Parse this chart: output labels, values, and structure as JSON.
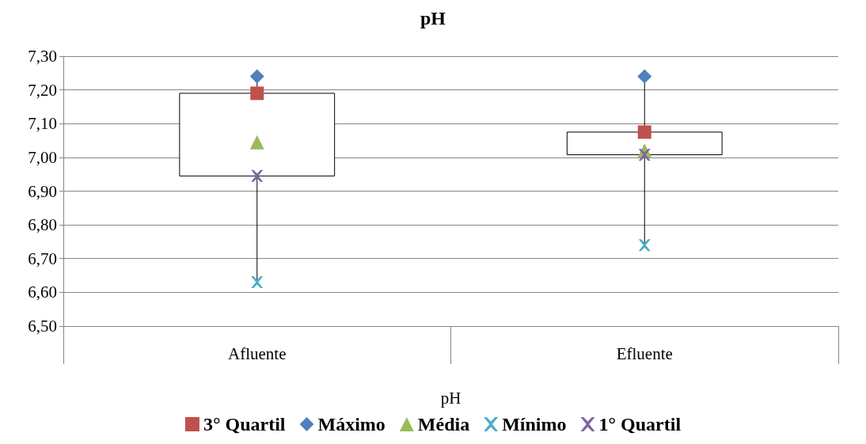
{
  "chart_data": {
    "type": "box",
    "title": "pH",
    "xlabel": "pH",
    "categories": [
      "Afluente",
      "Efluente"
    ],
    "boxes": [
      {
        "low": 6.63,
        "q1": 6.945,
        "q3": 7.19,
        "high": 7.24
      },
      {
        "low": 6.74,
        "q1": 7.008,
        "q3": 7.075,
        "high": 7.24
      }
    ],
    "series": [
      {
        "name": "3° Quartil",
        "type": "scatter",
        "color": "#c0504d",
        "marker": "square",
        "values": [
          7.19,
          7.075
        ]
      },
      {
        "name": "Máximo",
        "type": "scatter",
        "color": "#4f81bd",
        "marker": "diamond",
        "values": [
          7.24,
          7.24
        ]
      },
      {
        "name": "Média",
        "type": "scatter",
        "color": "#9bbb59",
        "marker": "triangle",
        "values": [
          7.045,
          7.02
        ]
      },
      {
        "name": "Mínimo",
        "type": "scatter",
        "color": "#4bacc6",
        "marker": "cross",
        "values": [
          6.63,
          6.74
        ]
      },
      {
        "name": "1° Quartil",
        "type": "scatter",
        "color": "#8064a2",
        "marker": "cross",
        "values": [
          6.945,
          7.008
        ]
      }
    ],
    "ylim": [
      6.5,
      7.3
    ],
    "yticks": [
      {
        "value": 6.5,
        "label": "6,50"
      },
      {
        "value": 6.6,
        "label": "6,60"
      },
      {
        "value": 6.7,
        "label": "6,70"
      },
      {
        "value": 6.8,
        "label": "6,80"
      },
      {
        "value": 6.9,
        "label": "6,90"
      },
      {
        "value": 7.0,
        "label": "7,00"
      },
      {
        "value": 7.1,
        "label": "7,10"
      },
      {
        "value": 7.2,
        "label": "7,20"
      },
      {
        "value": 7.3,
        "label": "7,30"
      }
    ],
    "grid": "y",
    "legend": "bottom"
  }
}
